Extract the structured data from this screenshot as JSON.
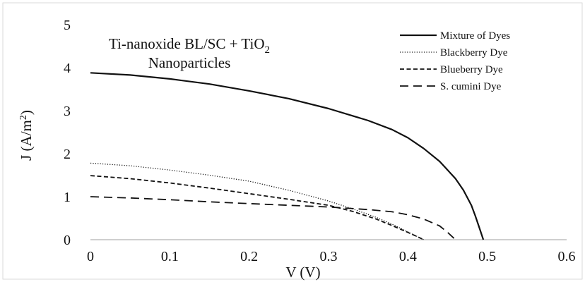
{
  "chart_data": {
    "type": "line",
    "title": "",
    "annotation": {
      "line1_prefix": "Ti-nanoxide BL/SC + TiO",
      "line1_sub": "2",
      "line2": "Nanoparticles"
    },
    "xlabel": "V (V)",
    "ylabel": {
      "prefix": "J (A/m",
      "sup": "2",
      "suffix": ")"
    },
    "xlim": [
      0,
      0.6
    ],
    "ylim": [
      0,
      5
    ],
    "x_ticks": [
      0,
      0.1,
      0.2,
      0.3,
      0.4,
      0.5,
      0.6
    ],
    "x_tick_labels": [
      "0",
      "0.1",
      "0.2",
      "0.3",
      "0.4",
      "0.5",
      "0.6"
    ],
    "y_ticks": [
      0,
      1,
      2,
      3,
      4,
      5
    ],
    "y_tick_labels": [
      "0",
      "1",
      "2",
      "3",
      "4",
      "5"
    ],
    "grid": false,
    "legend_position": "top-right",
    "series": [
      {
        "name": "Mixture of Dyes",
        "style": "solid",
        "x": [
          0,
          0.05,
          0.1,
          0.15,
          0.2,
          0.25,
          0.3,
          0.35,
          0.38,
          0.4,
          0.42,
          0.44,
          0.46,
          0.47,
          0.48,
          0.485,
          0.49,
          0.495
        ],
        "y": [
          3.88,
          3.83,
          3.74,
          3.62,
          3.46,
          3.28,
          3.05,
          2.77,
          2.56,
          2.37,
          2.12,
          1.82,
          1.42,
          1.15,
          0.8,
          0.55,
          0.28,
          0
        ]
      },
      {
        "name": "Blackberry Dye",
        "style": "dotted",
        "x": [
          0,
          0.05,
          0.1,
          0.15,
          0.2,
          0.25,
          0.3,
          0.33,
          0.36,
          0.38,
          0.4,
          0.42
        ],
        "y": [
          1.78,
          1.72,
          1.62,
          1.5,
          1.36,
          1.15,
          0.9,
          0.72,
          0.52,
          0.36,
          0.18,
          0
        ]
      },
      {
        "name": "Blueberry Dye",
        "style": "dashed",
        "x": [
          0,
          0.05,
          0.1,
          0.15,
          0.2,
          0.25,
          0.3,
          0.33,
          0.36,
          0.38,
          0.4,
          0.42
        ],
        "y": [
          1.49,
          1.42,
          1.32,
          1.2,
          1.07,
          0.94,
          0.8,
          0.66,
          0.48,
          0.33,
          0.17,
          0
        ]
      },
      {
        "name": "S. cumini Dye",
        "style": "longdash",
        "x": [
          0,
          0.05,
          0.1,
          0.15,
          0.2,
          0.25,
          0.3,
          0.35,
          0.38,
          0.4,
          0.42,
          0.44,
          0.45,
          0.46
        ],
        "y": [
          1.0,
          0.97,
          0.93,
          0.88,
          0.84,
          0.8,
          0.76,
          0.7,
          0.65,
          0.58,
          0.48,
          0.32,
          0.17,
          0
        ]
      }
    ]
  }
}
